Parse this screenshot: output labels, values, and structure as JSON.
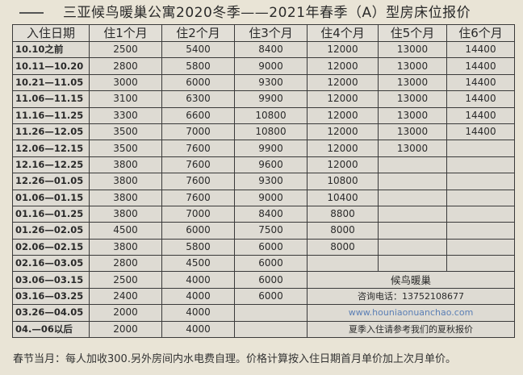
{
  "title": "三亚候鸟暖巢公寓2020冬季——2021年春季（A）型房床位报价",
  "headers": [
    "入住日期",
    "住1个月",
    "住2个月",
    "住3个月",
    "住4个月",
    "住5个月",
    "住6个月"
  ],
  "rows": [
    {
      "date": "10.10之前",
      "prices": [
        "2500",
        "5400",
        "8400",
        "12000",
        "13000",
        "14400"
      ]
    },
    {
      "date": "10.11—10.20",
      "prices": [
        "2800",
        "5800",
        "9000",
        "12000",
        "13000",
        "14400"
      ]
    },
    {
      "date": "10.21—11.05",
      "prices": [
        "3000",
        "6000",
        "9300",
        "12000",
        "13000",
        "14400"
      ]
    },
    {
      "date": "11.06—11.15",
      "prices": [
        "3100",
        "6300",
        "9900",
        "12000",
        "13000",
        "14400"
      ]
    },
    {
      "date": "11.16—11.25",
      "prices": [
        "3300",
        "6600",
        "10800",
        "12000",
        "13000",
        "14400"
      ]
    },
    {
      "date": "11.26—12.05",
      "prices": [
        "3500",
        "7000",
        "10800",
        "12000",
        "13000",
        "14400"
      ]
    },
    {
      "date": "12.06—12.15",
      "prices": [
        "3500",
        "7600",
        "9900",
        "12000",
        "13000",
        ""
      ]
    },
    {
      "date": "12.16—12.25",
      "prices": [
        "3800",
        "7600",
        "9600",
        "12000",
        "",
        ""
      ]
    },
    {
      "date": "12.26—01.05",
      "prices": [
        "3800",
        "7600",
        "9300",
        "10800",
        "",
        ""
      ]
    },
    {
      "date": "01.06—01.15",
      "prices": [
        "3800",
        "7600",
        "9000",
        "10400",
        "",
        ""
      ]
    },
    {
      "date": "01.16—01.25",
      "prices": [
        "3800",
        "7000",
        "8400",
        "8800",
        "",
        ""
      ]
    },
    {
      "date": "01.26—02.05",
      "prices": [
        "4500",
        "6000",
        "7500",
        "8000",
        "",
        ""
      ]
    },
    {
      "date": "02.06—02.15",
      "prices": [
        "3800",
        "5800",
        "6000",
        "8000",
        "",
        ""
      ]
    },
    {
      "date": "02.16—03.05",
      "prices": [
        "2800",
        "4500",
        "6000",
        "",
        "",
        ""
      ]
    },
    {
      "date": "03.06—03.15",
      "prices": [
        "2500",
        "4000",
        "6000"
      ]
    },
    {
      "date": "03.16—03.25",
      "prices": [
        "2400",
        "4000",
        "6000"
      ]
    },
    {
      "date": "03.26—04.05",
      "prices": [
        "2000",
        "4000",
        ""
      ]
    },
    {
      "date": "04.—06以后",
      "prices": [
        "2000",
        "4000",
        ""
      ]
    }
  ],
  "info": {
    "brand": "候鸟暖巢",
    "phone": "咨询电话：13752108677",
    "url": "www.houniaonuanchao.com",
    "summer_note": "夏季入住请参考我们的夏秋报价"
  },
  "footer": "春节当月：每人加收300.另外房间内水电费自理。价格计算按入住日期首月单价加上次月单价。",
  "colors": {
    "paper": "#e9e4d6",
    "cell": "#dedbd3",
    "url": "#5b7fb5"
  }
}
